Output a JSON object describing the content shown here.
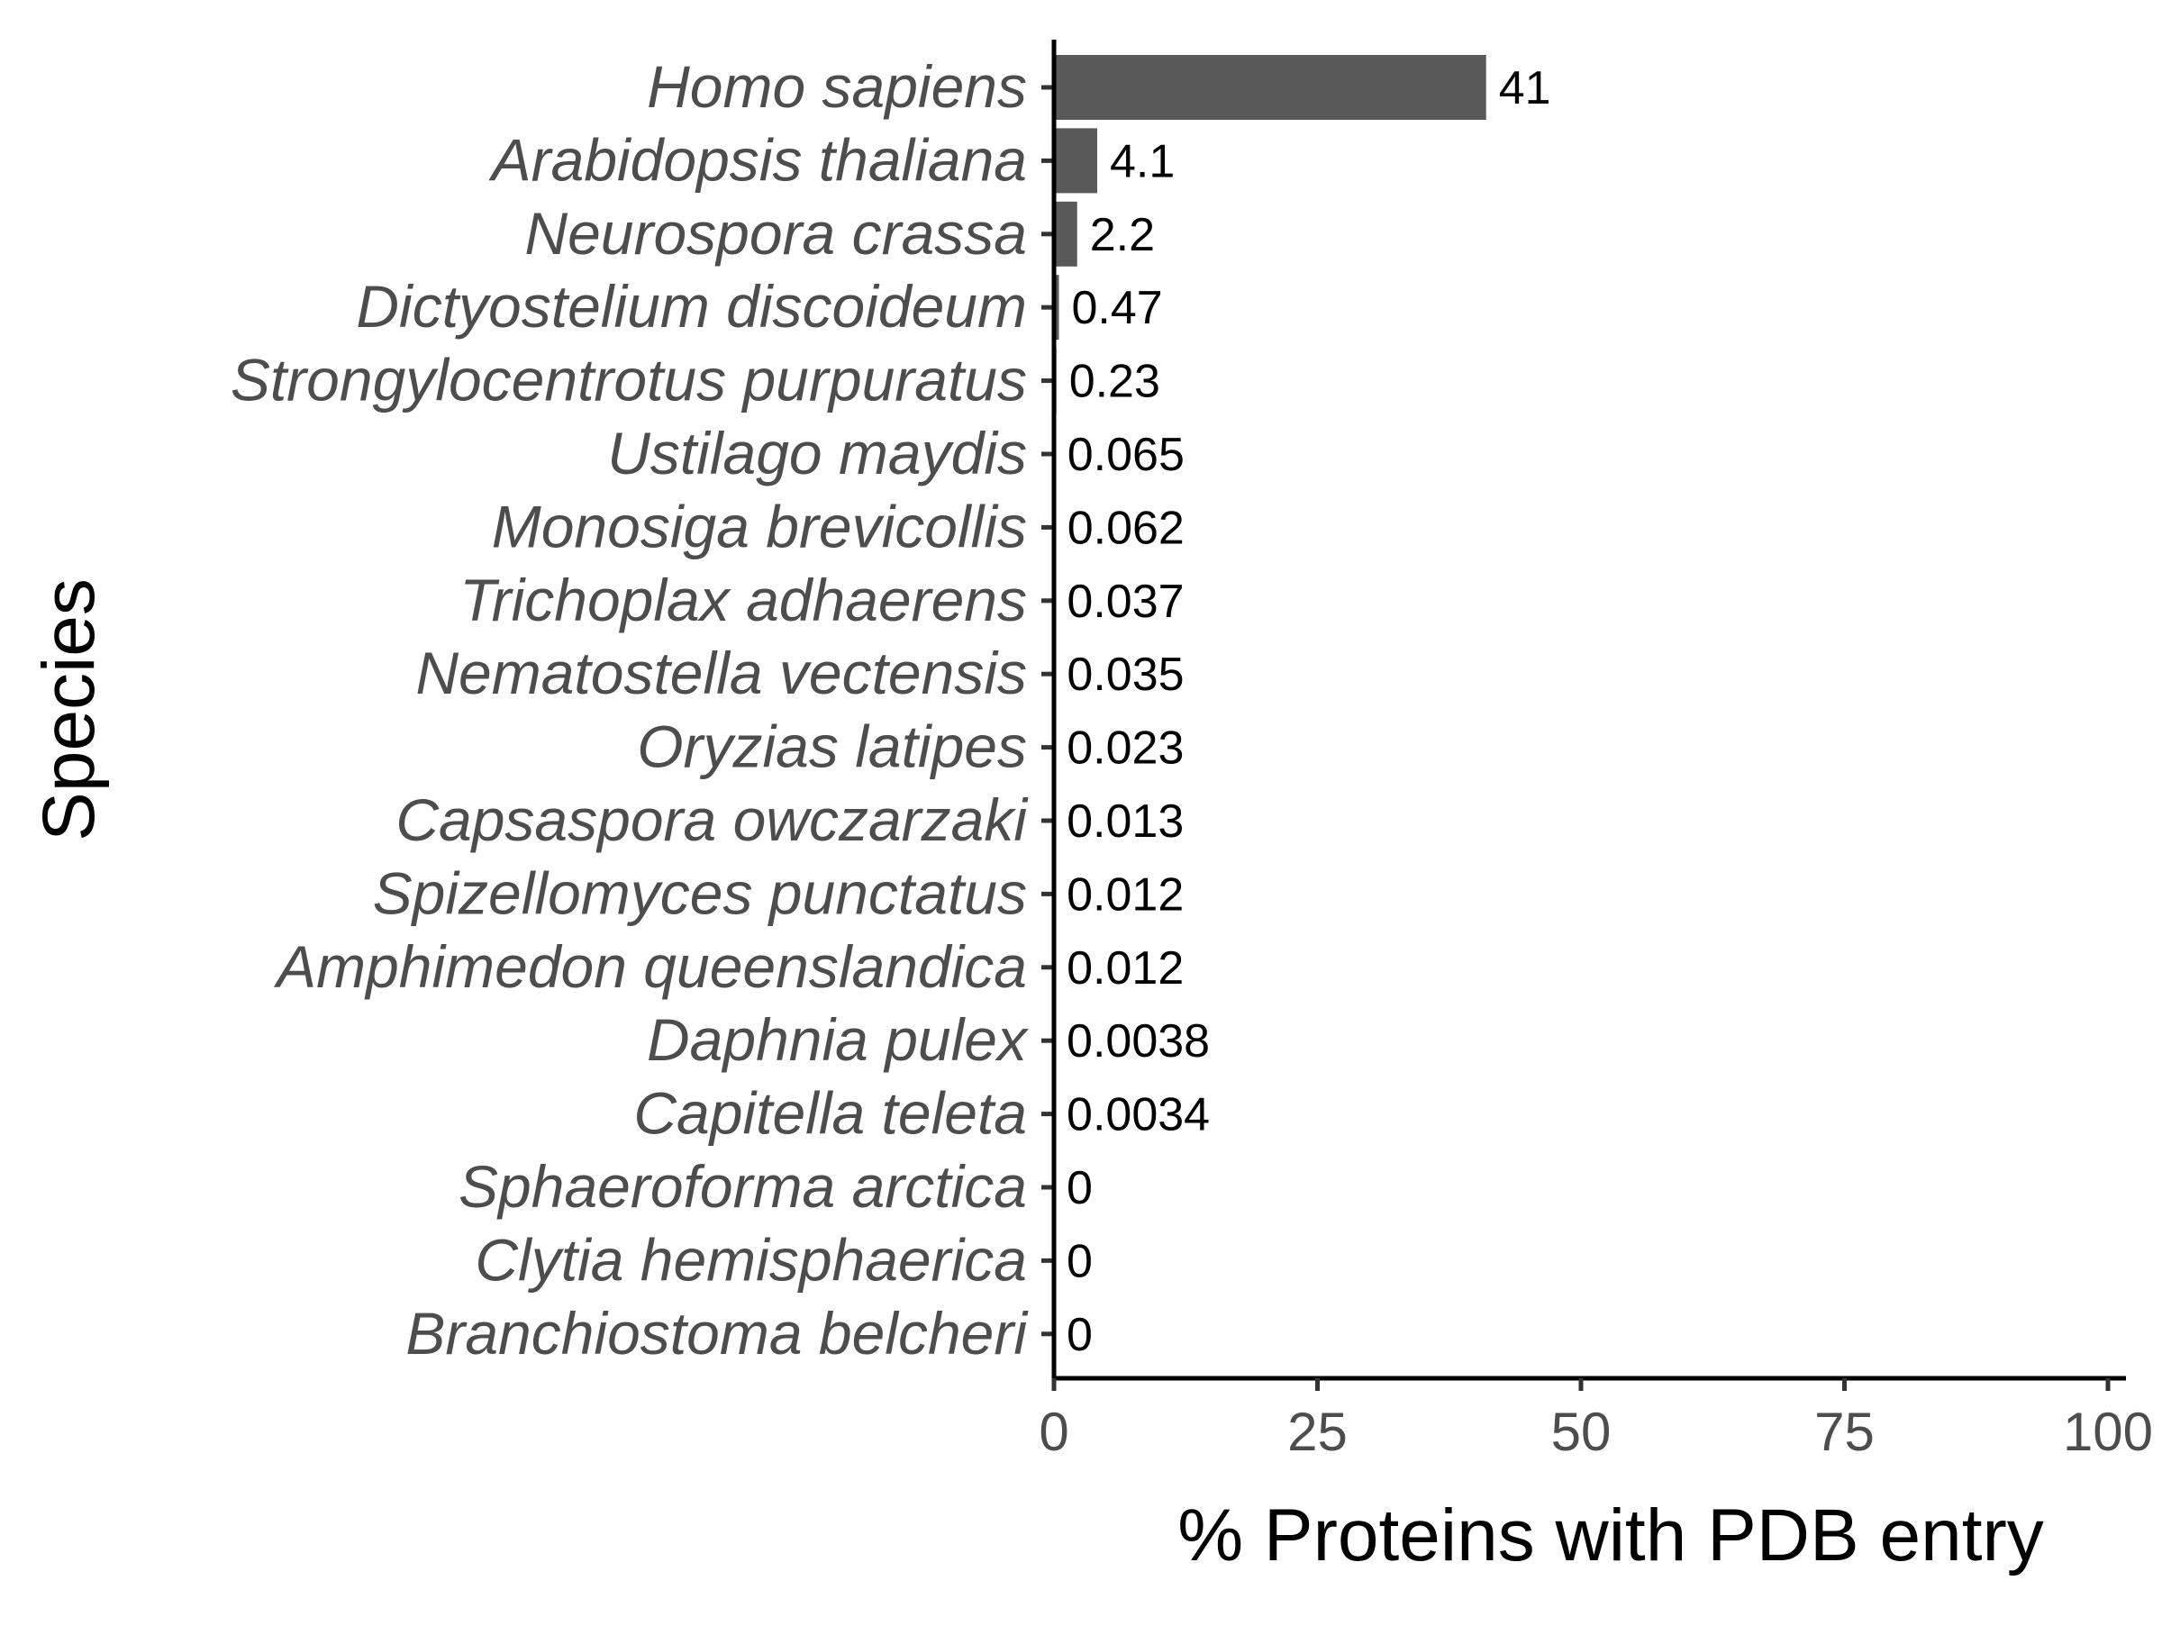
{
  "chart_data": {
    "type": "bar",
    "orientation": "horizontal",
    "title": "",
    "xlabel": "% Proteins with PDB entry",
    "ylabel": "Species",
    "xlim": [
      0,
      100
    ],
    "x_ticks": [
      "0",
      "25",
      "50",
      "75",
      "100"
    ],
    "x_tick_values": [
      0,
      25,
      50,
      75,
      100
    ],
    "grid": false,
    "bar_color": "#595959",
    "categories": [
      "Homo sapiens",
      "Arabidopsis thaliana",
      "Neurospora crassa",
      "Dictyostelium discoideum",
      "Strongylocentrotus purpuratus",
      "Ustilago maydis",
      "Monosiga brevicollis",
      "Trichoplax adhaerens",
      "Nematostella vectensis",
      "Oryzias latipes",
      "Capsaspora owczarzaki",
      "Spizellomyces punctatus",
      "Amphimedon queenslandica",
      "Daphnia pulex",
      "Capitella teleta",
      "Sphaeroforma arctica",
      "Clytia hemisphaerica",
      "Branchiostoma belcheri"
    ],
    "values": [
      41,
      4.1,
      2.2,
      0.47,
      0.23,
      0.065,
      0.062,
      0.037,
      0.035,
      0.023,
      0.013,
      0.012,
      0.012,
      0.0038,
      0.0034,
      0,
      0,
      0
    ],
    "data_labels": [
      "41",
      "4.1",
      "2.2",
      "0.47",
      "0.23",
      "0.065",
      "0.062",
      "0.037",
      "0.035",
      "0.023",
      "0.013",
      "0.012",
      "0.012",
      "0.0038",
      "0.0034",
      "0",
      "0",
      "0"
    ]
  }
}
